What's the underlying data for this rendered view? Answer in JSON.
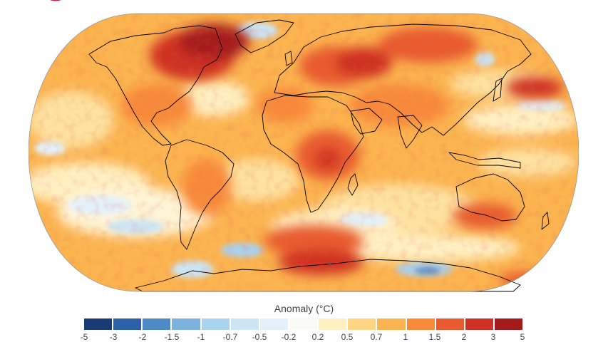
{
  "legend": {
    "title": "Anomaly (°C)",
    "ticks": [
      "-5",
      "-3",
      "-2",
      "-1.5",
      "-1",
      "-0.7",
      "-0.5",
      "-0.2",
      "0.2",
      "0.5",
      "0.7",
      "1",
      "1.5",
      "2",
      "3",
      "5"
    ],
    "colors": [
      "#1a3a75",
      "#2c60a8",
      "#4d8ac6",
      "#7cb2de",
      "#a9d2ee",
      "#cbe5f5",
      "#e4f1fa",
      "#fafaf6",
      "#fff0c2",
      "#fdd583",
      "#fbb44f",
      "#f88a3a",
      "#e85b2e",
      "#cf3124",
      "#a51a1d"
    ]
  },
  "map": {
    "projection": "robinson",
    "ocean_base_color": "#fbb44f",
    "coastline_color": "#000000",
    "logo_color": "#c0254a"
  }
}
